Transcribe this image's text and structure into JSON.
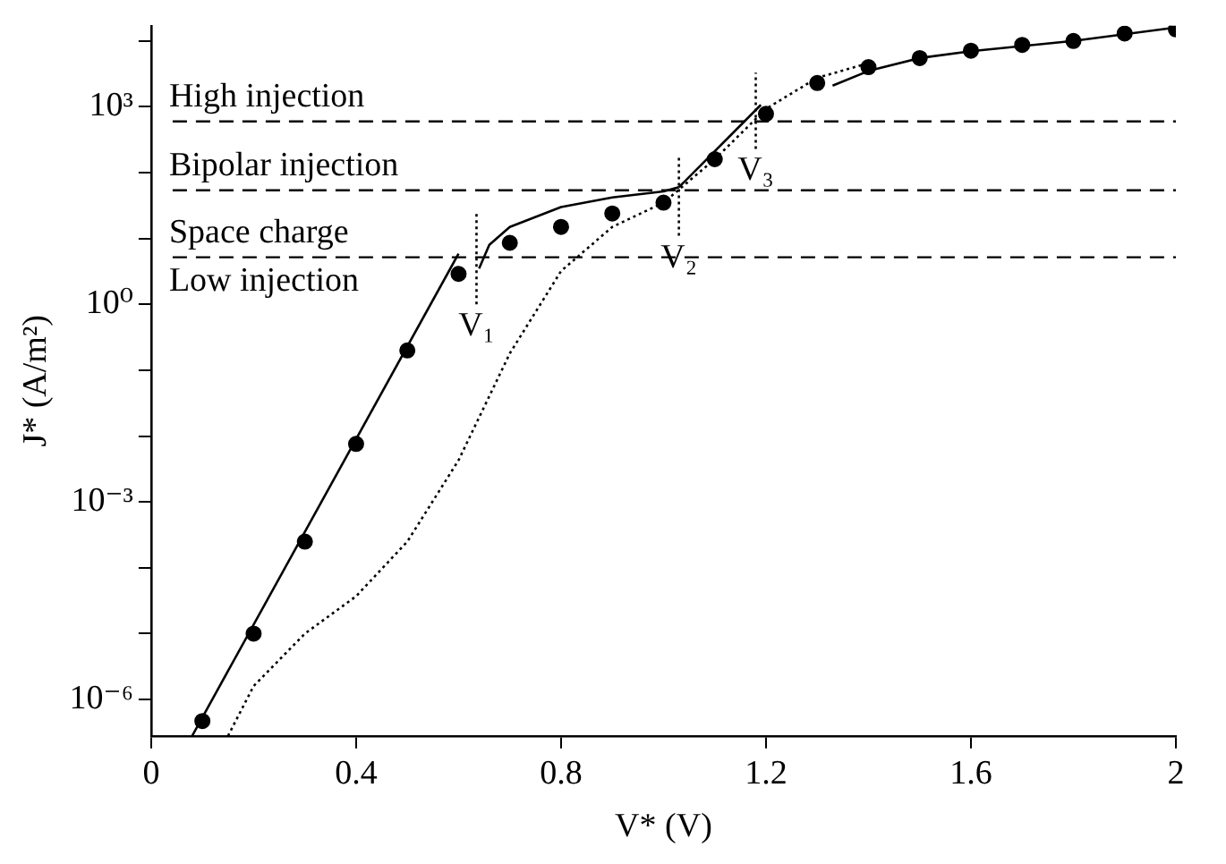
{
  "chart_data": {
    "type": "scatter",
    "xlabel": "V* (V)",
    "ylabel": "J* (A/m²)",
    "log": "y",
    "grid": false,
    "legend": false,
    "xlim": [
      0,
      2
    ],
    "xticks": [
      0,
      0.4,
      0.8,
      1.2,
      1.6,
      2
    ],
    "ylim": [
      2.8e-07,
      17000.0
    ],
    "yticks": [
      {
        "value": 1e-06,
        "label": "10⁻⁶"
      },
      {
        "value": 1e-05,
        "label": null
      },
      {
        "value": 0.0001,
        "label": null
      },
      {
        "value": 0.001,
        "label": "10⁻³"
      },
      {
        "value": 0.01,
        "label": null
      },
      {
        "value": 0.1,
        "label": null
      },
      {
        "value": 1,
        "label": "10⁰"
      },
      {
        "value": 10,
        "label": null
      },
      {
        "value": 100,
        "label": null
      },
      {
        "value": 1000,
        "label": "10³"
      },
      {
        "value": 10000,
        "label": null
      }
    ],
    "series": [
      {
        "type": "scatter",
        "marker": "circle",
        "color": "#000000",
        "x": [
          0.1,
          0.2,
          0.3,
          0.4,
          0.5,
          0.6,
          0.7,
          0.8,
          0.9,
          1.0,
          1.1,
          1.2,
          1.3,
          1.4,
          1.5,
          1.6,
          1.7,
          1.8,
          1.9,
          2.0
        ],
        "values": [
          4.7e-07,
          1e-05,
          0.00025,
          0.0076,
          0.2,
          2.9,
          8.6,
          15,
          24,
          35,
          160,
          780,
          2300,
          4000,
          5500,
          7100,
          8700,
          10000,
          13000,
          15000
        ]
      },
      {
        "type": "line",
        "marker": "none",
        "line_style": "solid",
        "color": "#000000",
        "x": [
          0.08,
          0.6
        ],
        "values": [
          2.8e-07,
          5.9
        ]
      },
      {
        "type": "line",
        "marker": "none",
        "line_style": "solid",
        "color": "#000000",
        "x": [
          0.64,
          0.66,
          0.7,
          0.8,
          0.9,
          1.0,
          1.03
        ],
        "values": [
          3.5,
          8,
          15,
          30,
          42,
          52,
          60
        ]
      },
      {
        "type": "line",
        "marker": "none",
        "line_style": "solid",
        "color": "#000000",
        "x": [
          1.03,
          1.19
        ],
        "values": [
          60,
          1070
        ]
      },
      {
        "type": "line",
        "marker": "none",
        "line_style": "solid",
        "color": "#000000",
        "x": [
          1.33,
          1.4,
          1.5,
          1.6,
          1.8,
          2.0
        ],
        "values": [
          2100,
          3500,
          5500,
          7000,
          10000,
          16000
        ]
      },
      {
        "type": "line",
        "marker": "none",
        "line_style": "dotted",
        "color": "#000000",
        "x": [
          0.15,
          0.2,
          0.3,
          0.4,
          0.5,
          0.6,
          0.7,
          0.8,
          0.9,
          1.0,
          1.1,
          1.2,
          1.3,
          1.4
        ],
        "values": [
          2.8e-07,
          1.6e-06,
          1e-05,
          3.7e-05,
          0.00025,
          0.0043,
          0.18,
          3.2,
          15,
          35,
          160,
          930,
          2750,
          4600
        ]
      },
      {
        "type": "line",
        "marker": "none",
        "line_style": "dotted",
        "color": "#000000",
        "x": [
          0.635,
          0.635
        ],
        "values": [
          1,
          25
        ]
      },
      {
        "type": "line",
        "marker": "none",
        "line_style": "dotted",
        "color": "#000000",
        "x": [
          1.03,
          1.03
        ],
        "values": [
          11,
          190
        ]
      },
      {
        "type": "line",
        "marker": "none",
        "line_style": "dotted",
        "color": "#000000",
        "x": [
          1.18,
          1.18
        ],
        "values": [
          230,
          3300
        ]
      }
    ],
    "ref_lines": [
      {
        "axis": "y",
        "value": 600,
        "label": "High injection",
        "line_style": "dashed",
        "color": "#000000"
      },
      {
        "axis": "y",
        "value": 54,
        "label": "Bipolar injection",
        "line_style": "dashed",
        "color": "#000000"
      },
      {
        "axis": "y",
        "value": 5.2,
        "label": "Space charge",
        "line_style": "dashed",
        "color": "#000000"
      }
    ],
    "annotations": [
      "Low injection",
      {
        "text": "V₁",
        "x": 0.635,
        "y": 1
      },
      {
        "text": "V₂",
        "x": 1.03,
        "y": 11
      },
      {
        "text": "V₃",
        "x": 1.18,
        "y": 230
      }
    ]
  }
}
